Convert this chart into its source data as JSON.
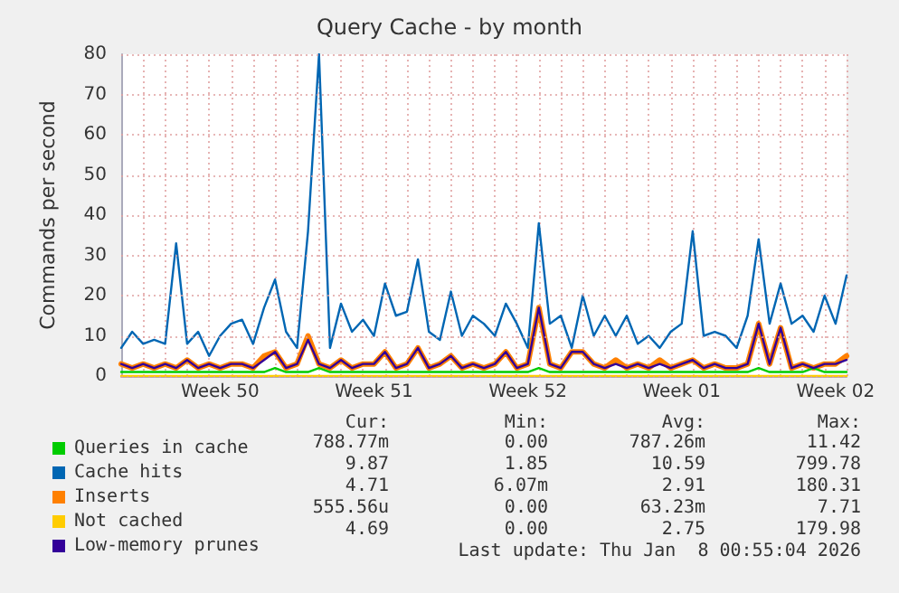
{
  "chart_data": {
    "type": "line",
    "title": "Query Cache - by month",
    "ylabel": "Commands per second",
    "categories": [
      null,
      null,
      null,
      null,
      null,
      null,
      null,
      null,
      null,
      "Week 50",
      null,
      null,
      null,
      null,
      null,
      null,
      null,
      null,
      null,
      null,
      null,
      null,
      null,
      "Week 51",
      null,
      null,
      null,
      null,
      null,
      null,
      null,
      null,
      null,
      null,
      null,
      null,
      null,
      "Week 52",
      null,
      null,
      null,
      null,
      null,
      null,
      null,
      null,
      null,
      null,
      null,
      null,
      null,
      "Week 01",
      null,
      null,
      null,
      null,
      null,
      null,
      null,
      null,
      null,
      null,
      null,
      null,
      null,
      "Week 02",
      null
    ],
    "ylim": [
      0,
      80
    ],
    "yticks": [
      0,
      10,
      20,
      30,
      40,
      50,
      60,
      70,
      80
    ],
    "grid": true,
    "legend": "bottom",
    "marker": "none",
    "line_style": "solid",
    "series": [
      {
        "name": "Queries in cache",
        "color": "#00cc00",
        "values": [
          1,
          1,
          1,
          1,
          1,
          1,
          1,
          1,
          1,
          1,
          1,
          1,
          1,
          1,
          2,
          1,
          1,
          1,
          2,
          1,
          1,
          1,
          1,
          1,
          1,
          1,
          1,
          1,
          1,
          1,
          1,
          1,
          1,
          1,
          1,
          1,
          1,
          1,
          2,
          1,
          1,
          1,
          1,
          1,
          1,
          1,
          1,
          1,
          1,
          1,
          1,
          1,
          1,
          1,
          1,
          1,
          1,
          1,
          2,
          1,
          1,
          1,
          1,
          2,
          1,
          1,
          1
        ]
      },
      {
        "name": "Cache hits",
        "color": "#0066b3",
        "values": [
          7,
          11,
          8,
          9,
          8,
          33,
          8,
          11,
          5,
          10,
          13,
          14,
          8,
          17,
          24,
          11,
          7,
          36,
          80,
          7,
          18,
          11,
          14,
          10,
          23,
          15,
          16,
          29,
          11,
          9,
          21,
          10,
          15,
          13,
          10,
          18,
          13,
          7,
          38,
          13,
          15,
          7,
          20,
          10,
          15,
          10,
          15,
          8,
          10,
          7,
          11,
          13,
          36,
          10,
          11,
          10,
          7,
          15,
          34,
          13,
          23,
          13,
          15,
          11,
          20,
          13,
          25
        ]
      },
      {
        "name": "Inserts",
        "color": "#ff8000",
        "values": [
          3,
          2,
          3,
          2,
          3,
          2,
          4,
          2,
          3,
          2,
          3,
          3,
          2,
          5,
          6,
          2,
          3,
          10,
          3,
          2,
          4,
          2,
          3,
          3,
          6,
          2,
          3,
          7,
          2,
          3,
          5,
          2,
          3,
          2,
          3,
          6,
          2,
          3,
          17,
          3,
          2,
          6,
          6,
          3,
          2,
          4,
          2,
          3,
          2,
          4,
          2,
          3,
          4,
          2,
          3,
          2,
          2,
          3,
          13,
          3,
          12,
          2,
          3,
          2,
          3,
          3,
          5
        ]
      },
      {
        "name": "Not cached",
        "color": "#ffcc00",
        "values": [
          0,
          0,
          0,
          0,
          0,
          0,
          0,
          0,
          0,
          0,
          0,
          0,
          0,
          0,
          0,
          0,
          0,
          0,
          0,
          0,
          0,
          0,
          0,
          0,
          0,
          0,
          0,
          0,
          0,
          0,
          0,
          0,
          0,
          0,
          0,
          0,
          0,
          0,
          0,
          0,
          0,
          0,
          0,
          0,
          0,
          0,
          0,
          0,
          0,
          0,
          0,
          0,
          0,
          0,
          0,
          0,
          0,
          0,
          0,
          0,
          0,
          0,
          0,
          0,
          0,
          0,
          0
        ]
      },
      {
        "name": "Low-memory prunes",
        "color": "#330099",
        "values": [
          3,
          2,
          3,
          2,
          3,
          2,
          4,
          2,
          3,
          2,
          3,
          3,
          2,
          4,
          6,
          2,
          3,
          9,
          3,
          2,
          4,
          2,
          3,
          3,
          6,
          2,
          3,
          7,
          2,
          3,
          5,
          2,
          3,
          2,
          3,
          6,
          2,
          3,
          17,
          3,
          2,
          6,
          6,
          3,
          2,
          3,
          2,
          3,
          2,
          3,
          2,
          3,
          4,
          2,
          3,
          2,
          2,
          3,
          13,
          3,
          12,
          2,
          3,
          2,
          3,
          3,
          4
        ]
      }
    ],
    "annotations": [
      "Cur:",
      "Min:",
      "Avg:",
      "Max:",
      "788.77m",
      "0.00",
      "787.26m",
      "11.42",
      "9.87",
      "1.85",
      "10.59",
      "799.78",
      "4.71",
      "6.07m",
      "2.91",
      "180.31",
      "555.56u",
      "0.00",
      "63.23m",
      "7.71",
      "4.69",
      "0.00",
      "2.75",
      "179.98",
      "Last update: Thu Jan  8 00:55:04 2026"
    ]
  }
}
